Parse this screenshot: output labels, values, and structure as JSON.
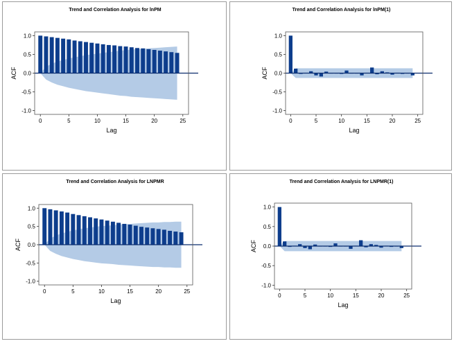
{
  "chart_data": [
    {
      "type": "bar",
      "title": "Trend and Correlation Analysis for lnPM",
      "xlabel": "Lag",
      "ylabel": "ACF",
      "xlim": [
        -1,
        26
      ],
      "ylim": [
        -1.1,
        1.1
      ],
      "xticks": [
        0,
        5,
        10,
        15,
        20,
        25
      ],
      "yticks": [
        1.0,
        0.5,
        0.0,
        -0.5,
        -1.0
      ],
      "lags": [
        0,
        1,
        2,
        3,
        4,
        5,
        6,
        7,
        8,
        9,
        10,
        11,
        12,
        13,
        14,
        15,
        16,
        17,
        18,
        19,
        20,
        21,
        22,
        23,
        24
      ],
      "values": [
        1.0,
        0.98,
        0.96,
        0.94,
        0.92,
        0.9,
        0.87,
        0.85,
        0.83,
        0.81,
        0.79,
        0.77,
        0.75,
        0.74,
        0.72,
        0.71,
        0.69,
        0.67,
        0.66,
        0.64,
        0.62,
        0.6,
        0.58,
        0.56,
        0.54
      ],
      "confidence_band": [
        0.0,
        0.17,
        0.25,
        0.31,
        0.35,
        0.39,
        0.42,
        0.45,
        0.48,
        0.5,
        0.52,
        0.54,
        0.56,
        0.58,
        0.6,
        0.61,
        0.63,
        0.64,
        0.65,
        0.66,
        0.67,
        0.68,
        0.69,
        0.7,
        0.71
      ]
    },
    {
      "type": "bar",
      "title": "Trend and Correlation Analysis for lnPM(1)",
      "xlabel": "Lag",
      "ylabel": "ACF",
      "xlim": [
        -1,
        26
      ],
      "ylim": [
        -1.1,
        1.1
      ],
      "xticks": [
        0,
        5,
        10,
        15,
        20,
        25
      ],
      "yticks": [
        1.0,
        0.5,
        0.0,
        -0.5,
        -1.0
      ],
      "lags": [
        0,
        1,
        2,
        3,
        4,
        5,
        6,
        7,
        8,
        9,
        10,
        11,
        12,
        13,
        14,
        15,
        16,
        17,
        18,
        19,
        20,
        21,
        22,
        23,
        24
      ],
      "values": [
        1.0,
        0.12,
        -0.02,
        0.01,
        0.05,
        -0.06,
        -0.09,
        0.04,
        0.0,
        0.0,
        -0.02,
        0.07,
        0.0,
        -0.01,
        -0.06,
        0.01,
        0.15,
        -0.03,
        0.05,
        0.02,
        -0.04,
        0.01,
        -0.02,
        0.0,
        -0.06
      ],
      "confidence_band": [
        0.0,
        0.13,
        0.13,
        0.13,
        0.13,
        0.13,
        0.13,
        0.13,
        0.13,
        0.13,
        0.13,
        0.13,
        0.13,
        0.13,
        0.13,
        0.13,
        0.13,
        0.13,
        0.13,
        0.13,
        0.13,
        0.13,
        0.13,
        0.13,
        0.13
      ]
    },
    {
      "type": "bar",
      "title": "Trend and Correlation Analysis for LNPMR",
      "xlabel": "Lag",
      "ylabel": "ACF",
      "xlim": [
        -1,
        26
      ],
      "ylim": [
        -1.1,
        1.1
      ],
      "xticks": [
        0,
        5,
        10,
        15,
        20,
        25
      ],
      "yticks": [
        1.0,
        0.5,
        0.0,
        -0.5,
        -1.0
      ],
      "lags": [
        0,
        1,
        2,
        3,
        4,
        5,
        6,
        7,
        8,
        9,
        10,
        11,
        12,
        13,
        14,
        15,
        16,
        17,
        18,
        19,
        20,
        21,
        22,
        23,
        24
      ],
      "values": [
        1.0,
        0.97,
        0.94,
        0.91,
        0.88,
        0.84,
        0.81,
        0.78,
        0.75,
        0.72,
        0.69,
        0.66,
        0.63,
        0.6,
        0.57,
        0.55,
        0.52,
        0.49,
        0.47,
        0.45,
        0.43,
        0.41,
        0.38,
        0.36,
        0.34
      ],
      "confidence_band": [
        0.0,
        0.17,
        0.25,
        0.31,
        0.35,
        0.39,
        0.42,
        0.45,
        0.47,
        0.49,
        0.51,
        0.52,
        0.53,
        0.55,
        0.56,
        0.57,
        0.58,
        0.59,
        0.6,
        0.61,
        0.61,
        0.62,
        0.62,
        0.63,
        0.63
      ]
    },
    {
      "type": "bar",
      "title": "Trend and Correlation Analysis for LNPMR(1)",
      "xlabel": "Lag",
      "ylabel": "ACF",
      "xlim": [
        -1,
        26
      ],
      "ylim": [
        -1.1,
        1.1
      ],
      "xticks": [
        0,
        5,
        10,
        15,
        20,
        25
      ],
      "yticks": [
        1.0,
        0.5,
        0.0,
        -0.5,
        -1.0
      ],
      "lags": [
        0,
        1,
        2,
        3,
        4,
        5,
        6,
        7,
        8,
        9,
        10,
        11,
        12,
        13,
        14,
        15,
        16,
        17,
        18,
        19,
        20,
        21,
        22,
        23,
        24
      ],
      "values": [
        1.0,
        0.12,
        -0.02,
        0.01,
        0.05,
        -0.05,
        -0.08,
        0.04,
        0.0,
        0.0,
        -0.02,
        0.07,
        0.0,
        -0.01,
        -0.07,
        0.01,
        0.15,
        -0.03,
        0.05,
        0.03,
        -0.04,
        0.01,
        -0.02,
        0.0,
        -0.05
      ],
      "confidence_band": [
        0.0,
        0.13,
        0.13,
        0.13,
        0.13,
        0.13,
        0.13,
        0.13,
        0.13,
        0.13,
        0.13,
        0.13,
        0.13,
        0.13,
        0.13,
        0.13,
        0.13,
        0.13,
        0.13,
        0.13,
        0.13,
        0.13,
        0.13,
        0.13,
        0.13
      ]
    }
  ]
}
